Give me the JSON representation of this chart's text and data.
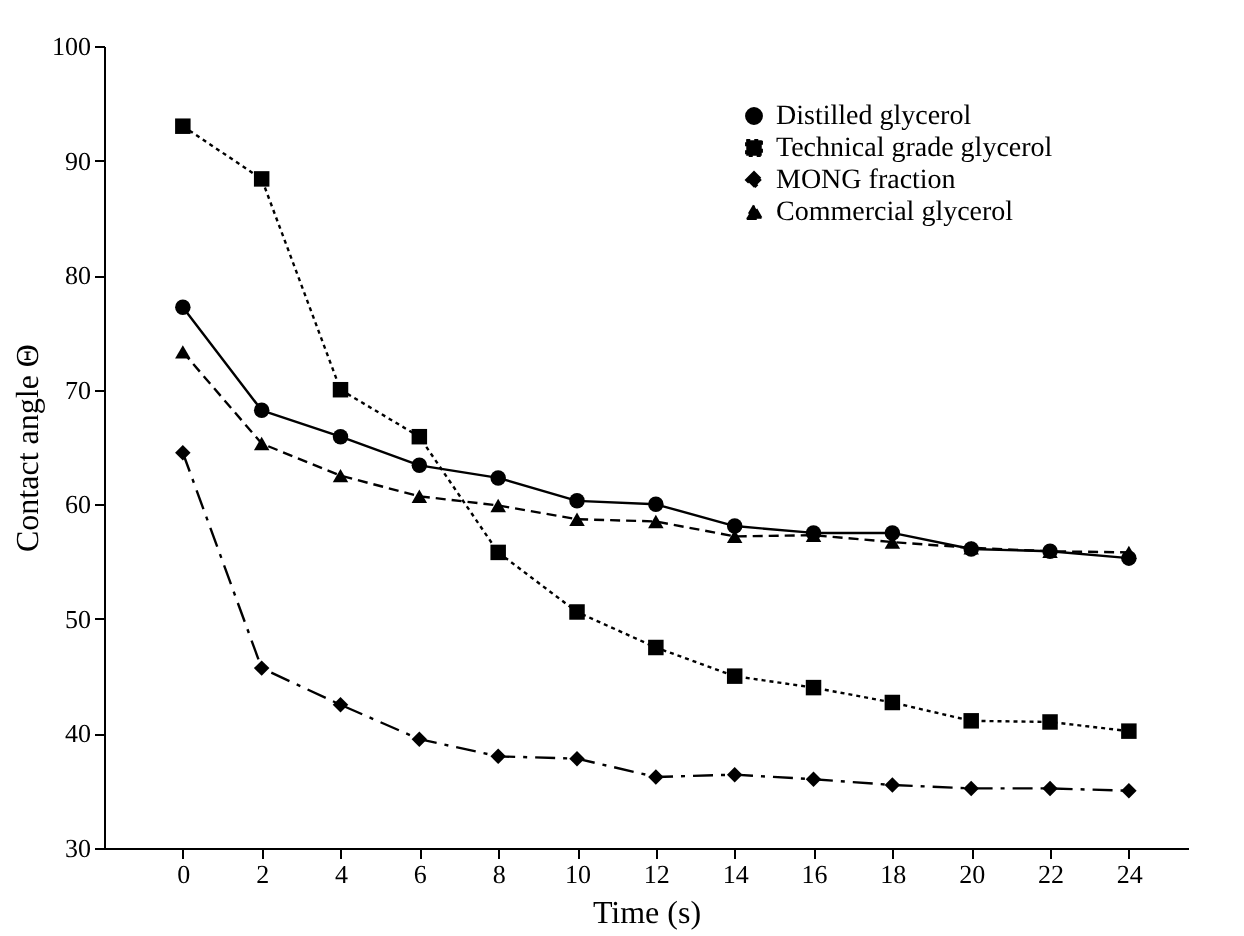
{
  "chart_data": {
    "type": "line",
    "xlabel": "Time (s)",
    "ylabel": "Contact angle Θ",
    "x": [
      0,
      2,
      4,
      6,
      8,
      10,
      12,
      14,
      16,
      18,
      20,
      22,
      24
    ],
    "xlim": [
      -2,
      25.5
    ],
    "xticks": [
      0,
      2,
      4,
      6,
      8,
      10,
      12,
      14,
      16,
      18,
      20,
      22,
      24
    ],
    "ylim": [
      30,
      100
    ],
    "yticks": [
      30,
      40,
      50,
      60,
      70,
      80,
      90,
      100
    ],
    "grid": false,
    "legend": "top right",
    "series": [
      {
        "name": "Distilled glycerol",
        "color": "#000000",
        "marker": "circle",
        "line_style": "solid",
        "values": [
          77.2,
          68.2,
          65.9,
          63.4,
          62.3,
          60.3,
          60.0,
          58.1,
          57.5,
          57.5,
          56.1,
          55.9,
          55.3
        ]
      },
      {
        "name": "Technical grade glycerol",
        "color": "#000000",
        "marker": "square",
        "line_style": "dotted",
        "values": [
          93.0,
          88.4,
          70.0,
          65.9,
          55.8,
          50.6,
          47.5,
          45.0,
          44.0,
          42.7,
          41.1,
          41.0,
          40.2
        ]
      },
      {
        "name": "MONG fraction",
        "color": "#000000",
        "marker": "diamond",
        "line_style": "dashdot",
        "values": [
          64.5,
          45.7,
          42.5,
          39.5,
          38.0,
          37.8,
          36.2,
          36.4,
          36.0,
          35.5,
          35.2,
          35.2,
          35.0
        ]
      },
      {
        "name": "Commercial glycerol",
        "color": "#000000",
        "marker": "triangle",
        "line_style": "dashed",
        "values": [
          73.3,
          65.3,
          62.5,
          60.7,
          59.9,
          58.7,
          58.5,
          57.2,
          57.3,
          56.7,
          56.2,
          55.9,
          55.8
        ]
      }
    ]
  }
}
